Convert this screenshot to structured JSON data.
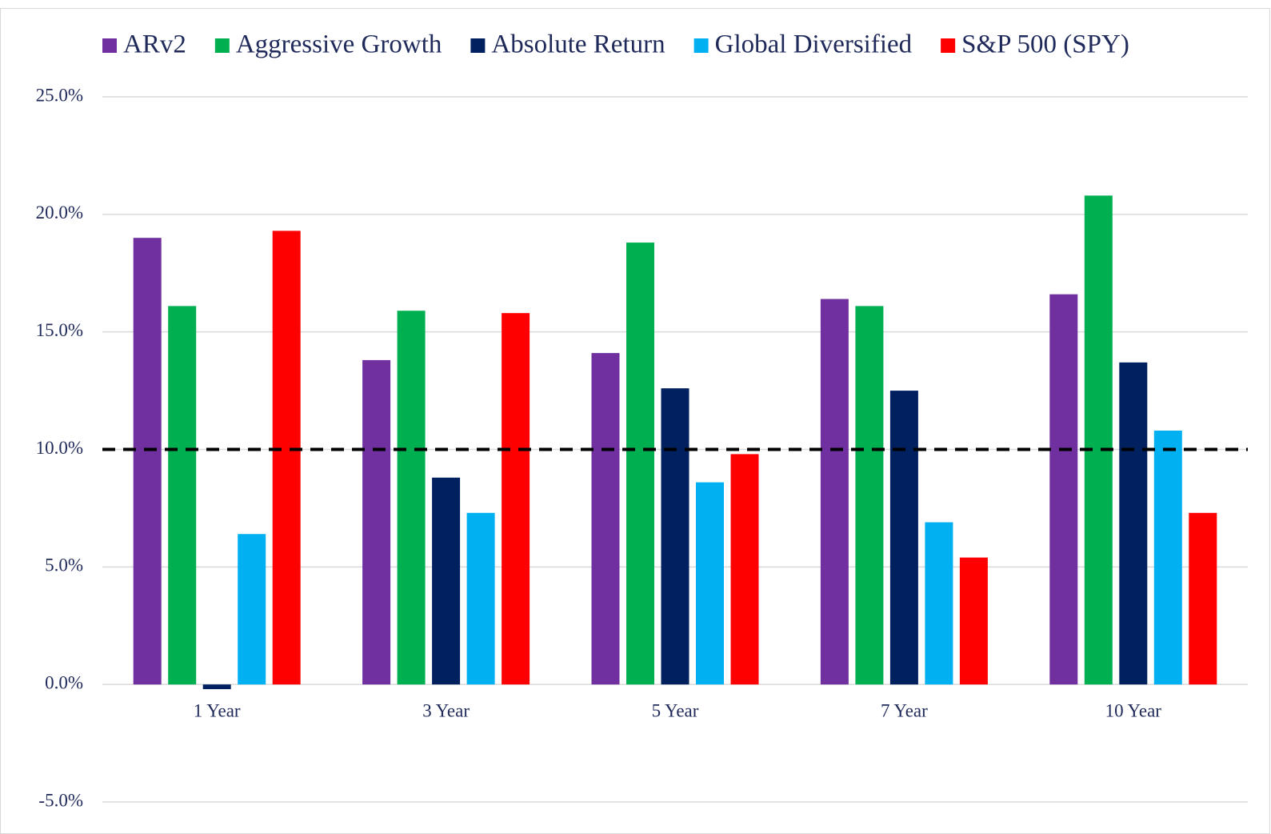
{
  "chart_data": {
    "type": "bar",
    "categories": [
      "1 Year",
      "3 Year",
      "5 Year",
      "7 Year",
      "10 Year"
    ],
    "series": [
      {
        "name": "ARv2",
        "color": "#7030a0",
        "values": [
          19.0,
          13.8,
          14.1,
          16.4,
          16.6
        ]
      },
      {
        "name": "Aggressive Growth",
        "color": "#00b050",
        "values": [
          16.1,
          15.9,
          18.8,
          16.1,
          20.8
        ]
      },
      {
        "name": "Absolute Return",
        "color": "#002060",
        "values": [
          -0.2,
          8.8,
          12.6,
          12.5,
          13.7
        ]
      },
      {
        "name": "Global Diversified",
        "color": "#00b0f0",
        "values": [
          6.4,
          7.3,
          8.6,
          6.9,
          10.8
        ]
      },
      {
        "name": "S&P 500 (SPY)",
        "color": "#ff0000",
        "values": [
          19.3,
          15.8,
          9.8,
          5.4,
          7.3
        ]
      }
    ],
    "ylim": [
      -5,
      25
    ],
    "yticks": [
      {
        "value": -5,
        "label": "-5.0%"
      },
      {
        "value": 0,
        "label": "0.0%"
      },
      {
        "value": 5,
        "label": "5.0%"
      },
      {
        "value": 10,
        "label": "10.0%"
      },
      {
        "value": 15,
        "label": "15.0%"
      },
      {
        "value": 20,
        "label": "20.0%"
      },
      {
        "value": 25,
        "label": "25.0%"
      }
    ],
    "reference_line": 10,
    "grid": true,
    "legend": "top"
  }
}
